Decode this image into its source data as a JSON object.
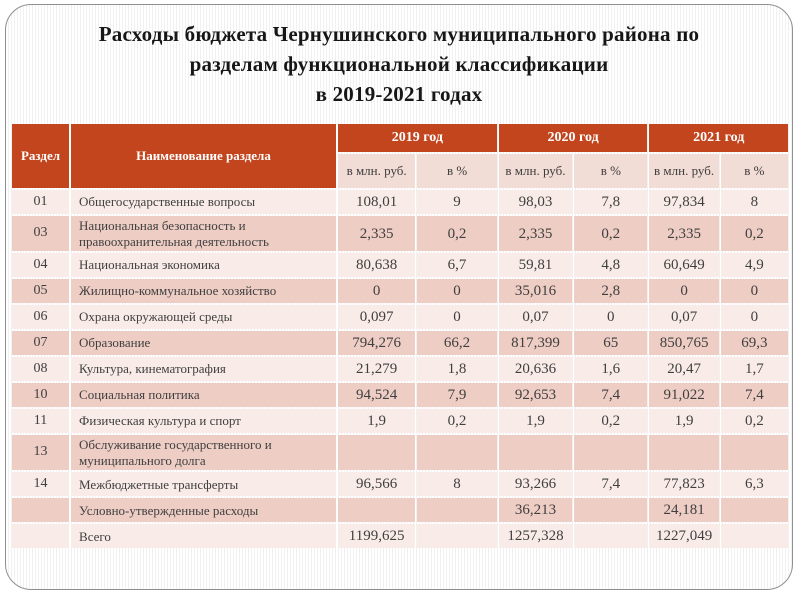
{
  "slide": {
    "title_lines": [
      "Расходы бюджета Чернушинского муниципального района по",
      "разделам функциональной классификации",
      "в 2019-2021 годах"
    ]
  },
  "table": {
    "columns": {
      "section": "Раздел",
      "section_name": "Наименование раздела",
      "years": [
        "2019 год",
        "2020 год",
        "2021 год"
      ],
      "sub_mln": "в млн. руб.",
      "sub_pct": "в %"
    },
    "rows": [
      {
        "code": "01",
        "name": "Общегосударственные вопросы",
        "values": [
          "108,01",
          "9",
          "98,03",
          "7,8",
          "97,834",
          "8"
        ]
      },
      {
        "code": "03",
        "name": "Национальная безопасность и правоохранительная деятельность",
        "values": [
          "2,335",
          "0,2",
          "2,335",
          "0,2",
          "2,335",
          "0,2"
        ]
      },
      {
        "code": "04",
        "name": "Национальная экономика",
        "values": [
          "80,638",
          "6,7",
          "59,81",
          "4,8",
          "60,649",
          "4,9"
        ]
      },
      {
        "code": "05",
        "name": "Жилищно-коммунальное хозяйство",
        "values": [
          "0",
          "0",
          "35,016",
          "2,8",
          "0",
          "0"
        ]
      },
      {
        "code": "06",
        "name": "Охрана окружающей среды",
        "values": [
          "0,097",
          "0",
          "0,07",
          "0",
          "0,07",
          "0"
        ]
      },
      {
        "code": "07",
        "name": "Образование",
        "values": [
          "794,276",
          "66,2",
          "817,399",
          "65",
          "850,765",
          "69,3"
        ]
      },
      {
        "code": "08",
        "name": "Культура, кинематография",
        "values": [
          "21,279",
          "1,8",
          "20,636",
          "1,6",
          "20,47",
          "1,7"
        ]
      },
      {
        "code": "10",
        "name": "Социальная политика",
        "values": [
          "94,524",
          "7,9",
          "92,653",
          "7,4",
          "91,022",
          "7,4"
        ]
      },
      {
        "code": "11",
        "name": "Физическая культура и спорт",
        "values": [
          "1,9",
          "0,2",
          "1,9",
          "0,2",
          "1,9",
          "0,2"
        ]
      },
      {
        "code": "13",
        "name": "Обслуживание государственного и муниципального долга",
        "values": [
          "",
          "",
          "",
          "",
          "",
          ""
        ]
      },
      {
        "code": "14",
        "name": "Межбюджетные трансферты",
        "values": [
          "96,566",
          "8",
          "93,266",
          "7,4",
          "77,823",
          "6,3"
        ]
      },
      {
        "code": "",
        "name": "Условно-утвержденные расходы",
        "values": [
          "",
          "",
          "36,213",
          "",
          "24,181",
          ""
        ]
      },
      {
        "code": "",
        "name": "Всего",
        "values": [
          "1199,625",
          "",
          "1257,328",
          "",
          "1227,049",
          ""
        ]
      }
    ]
  },
  "colors": {
    "header_bg": "#c2451e",
    "subheader_bg": "#f2dcd6",
    "row_light": "#f9ece8",
    "row_dark": "#eecdc4",
    "title_text": "#161616",
    "cell_text": "#3f3f3f",
    "slide_border": "#8f8f8f"
  }
}
